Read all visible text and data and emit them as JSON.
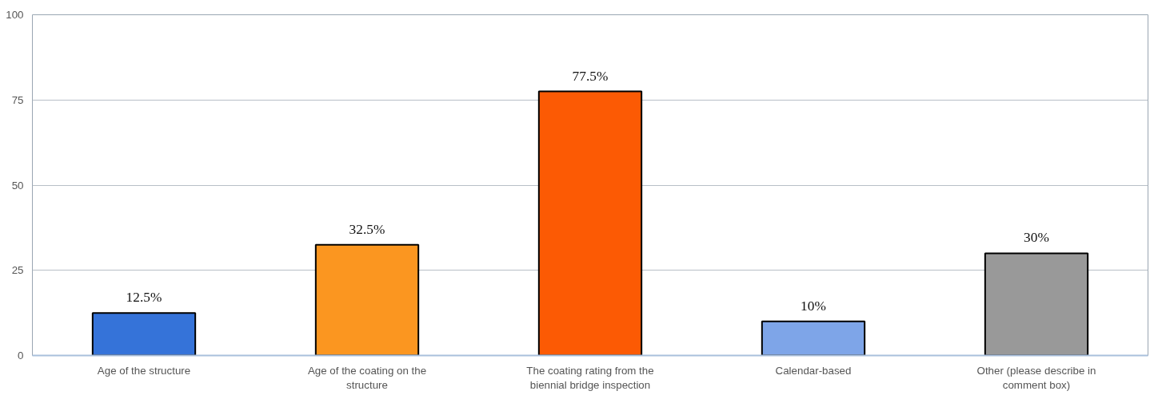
{
  "chart_data": {
    "type": "bar",
    "categories": [
      "Age of the structure",
      "Age of the coating on the structure",
      "The coating rating from the biennial bridge inspection",
      "Calendar-based",
      "Other (please describe in comment box)"
    ],
    "values": [
      12.5,
      32.5,
      77.5,
      10,
      30
    ],
    "colors": [
      "#3573d9",
      "#fb9620",
      "#fc5a04",
      "#7ea5e8",
      "#999999"
    ],
    "value_labels": [
      "12.5%",
      "32.5%",
      "77.5%",
      "10%",
      "30%"
    ],
    "ylim": [
      0,
      100
    ],
    "yticks": [
      0,
      25,
      50,
      75,
      100
    ],
    "grid": "y"
  }
}
